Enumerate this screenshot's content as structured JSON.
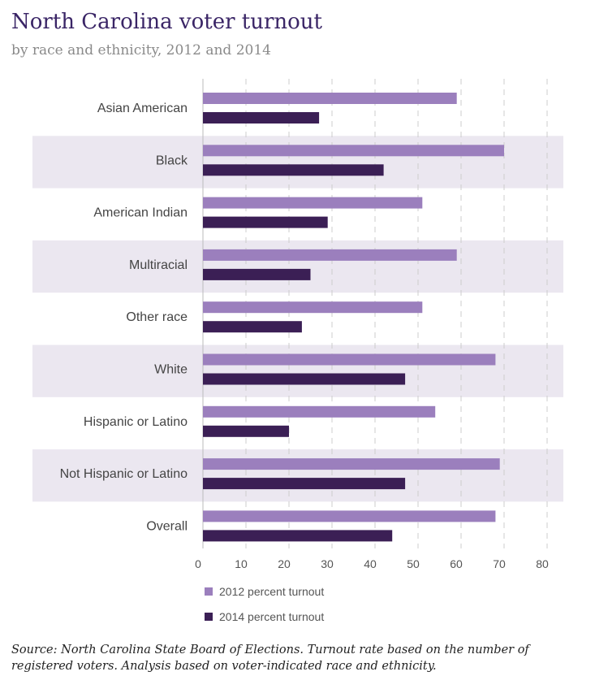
{
  "header": {
    "title": "North Carolina voter turnout",
    "subtitle": "by race and ethnicity, 2012 and 2014"
  },
  "legend": {
    "items": [
      {
        "label": "2012 percent turnout",
        "color": "#9b7fbd"
      },
      {
        "label": "2014 percent turnout",
        "color": "#3b1f55"
      }
    ]
  },
  "source": "Source: North Carolina State Board of Elections. Turnout rate based on the number of registered voters. Analysis based on voter-indicated race and ethnicity.",
  "chart_data": {
    "type": "bar",
    "orientation": "horizontal",
    "title": "North Carolina voter turnout",
    "subtitle": "by race and ethnicity, 2012 and 2014",
    "categories": [
      "Asian American",
      "Black",
      "American Indian",
      "Multiracial",
      "Other race",
      "White",
      "Hispanic or Latino",
      "Not Hispanic or Latino",
      "Overall"
    ],
    "series": [
      {
        "name": "2012 percent turnout",
        "color": "#9b7fbd",
        "values": [
          59,
          70,
          51,
          59,
          51,
          68,
          54,
          69,
          68
        ]
      },
      {
        "name": "2014 percent turnout",
        "color": "#3b1f55",
        "values": [
          27,
          42,
          29,
          25,
          23,
          47,
          20,
          47,
          44
        ]
      }
    ],
    "xlim": [
      0,
      80
    ],
    "xticks": [
      0,
      10,
      20,
      30,
      40,
      50,
      60,
      70,
      80
    ],
    "grid": "vertical dashed",
    "legend_position": "bottom-left",
    "xlabel": "",
    "ylabel": ""
  }
}
